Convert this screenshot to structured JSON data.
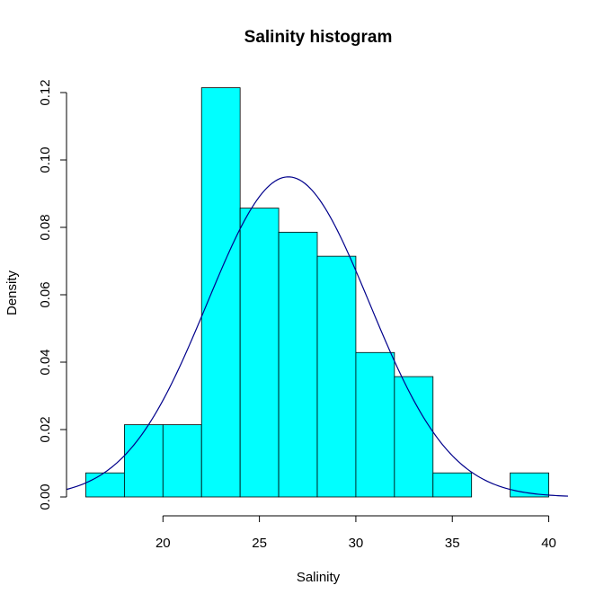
{
  "chart_data": {
    "type": "histogram",
    "title": "Salinity histogram",
    "xlabel": "Salinity",
    "ylabel": "Density",
    "xlim": [
      15,
      41
    ],
    "ylim": [
      0,
      0.12
    ],
    "x_ticks": [
      20,
      25,
      30,
      35,
      40
    ],
    "x_tick_labels": [
      "20",
      "25",
      "30",
      "35",
      "40"
    ],
    "y_ticks": [
      0.0,
      0.02,
      0.04,
      0.06,
      0.08,
      0.1,
      0.12
    ],
    "y_tick_labels": [
      "0.00",
      "0.02",
      "0.04",
      "0.06",
      "0.08",
      "0.10",
      "0.12"
    ],
    "bins": [
      {
        "x0": 16,
        "x1": 18,
        "density": 0.00714
      },
      {
        "x0": 18,
        "x1": 20,
        "density": 0.02143
      },
      {
        "x0": 20,
        "x1": 22,
        "density": 0.02143
      },
      {
        "x0": 22,
        "x1": 24,
        "density": 0.12143
      },
      {
        "x0": 24,
        "x1": 26,
        "density": 0.08571
      },
      {
        "x0": 26,
        "x1": 28,
        "density": 0.07857
      },
      {
        "x0": 28,
        "x1": 30,
        "density": 0.07143
      },
      {
        "x0": 30,
        "x1": 32,
        "density": 0.04286
      },
      {
        "x0": 32,
        "x1": 34,
        "density": 0.03571
      },
      {
        "x0": 34,
        "x1": 36,
        "density": 0.00714
      },
      {
        "x0": 36,
        "x1": 38,
        "density": 0.0
      },
      {
        "x0": 38,
        "x1": 40,
        "density": 0.00714
      }
    ],
    "density_curve": {
      "type": "normal",
      "mean": 26.5,
      "sd": 4.2,
      "x_range": [
        15,
        41
      ]
    },
    "colors": {
      "bar_fill": "#00ffff",
      "bar_stroke": "#000000",
      "curve": "#00008b",
      "axis": "#000000"
    },
    "grid": false
  }
}
